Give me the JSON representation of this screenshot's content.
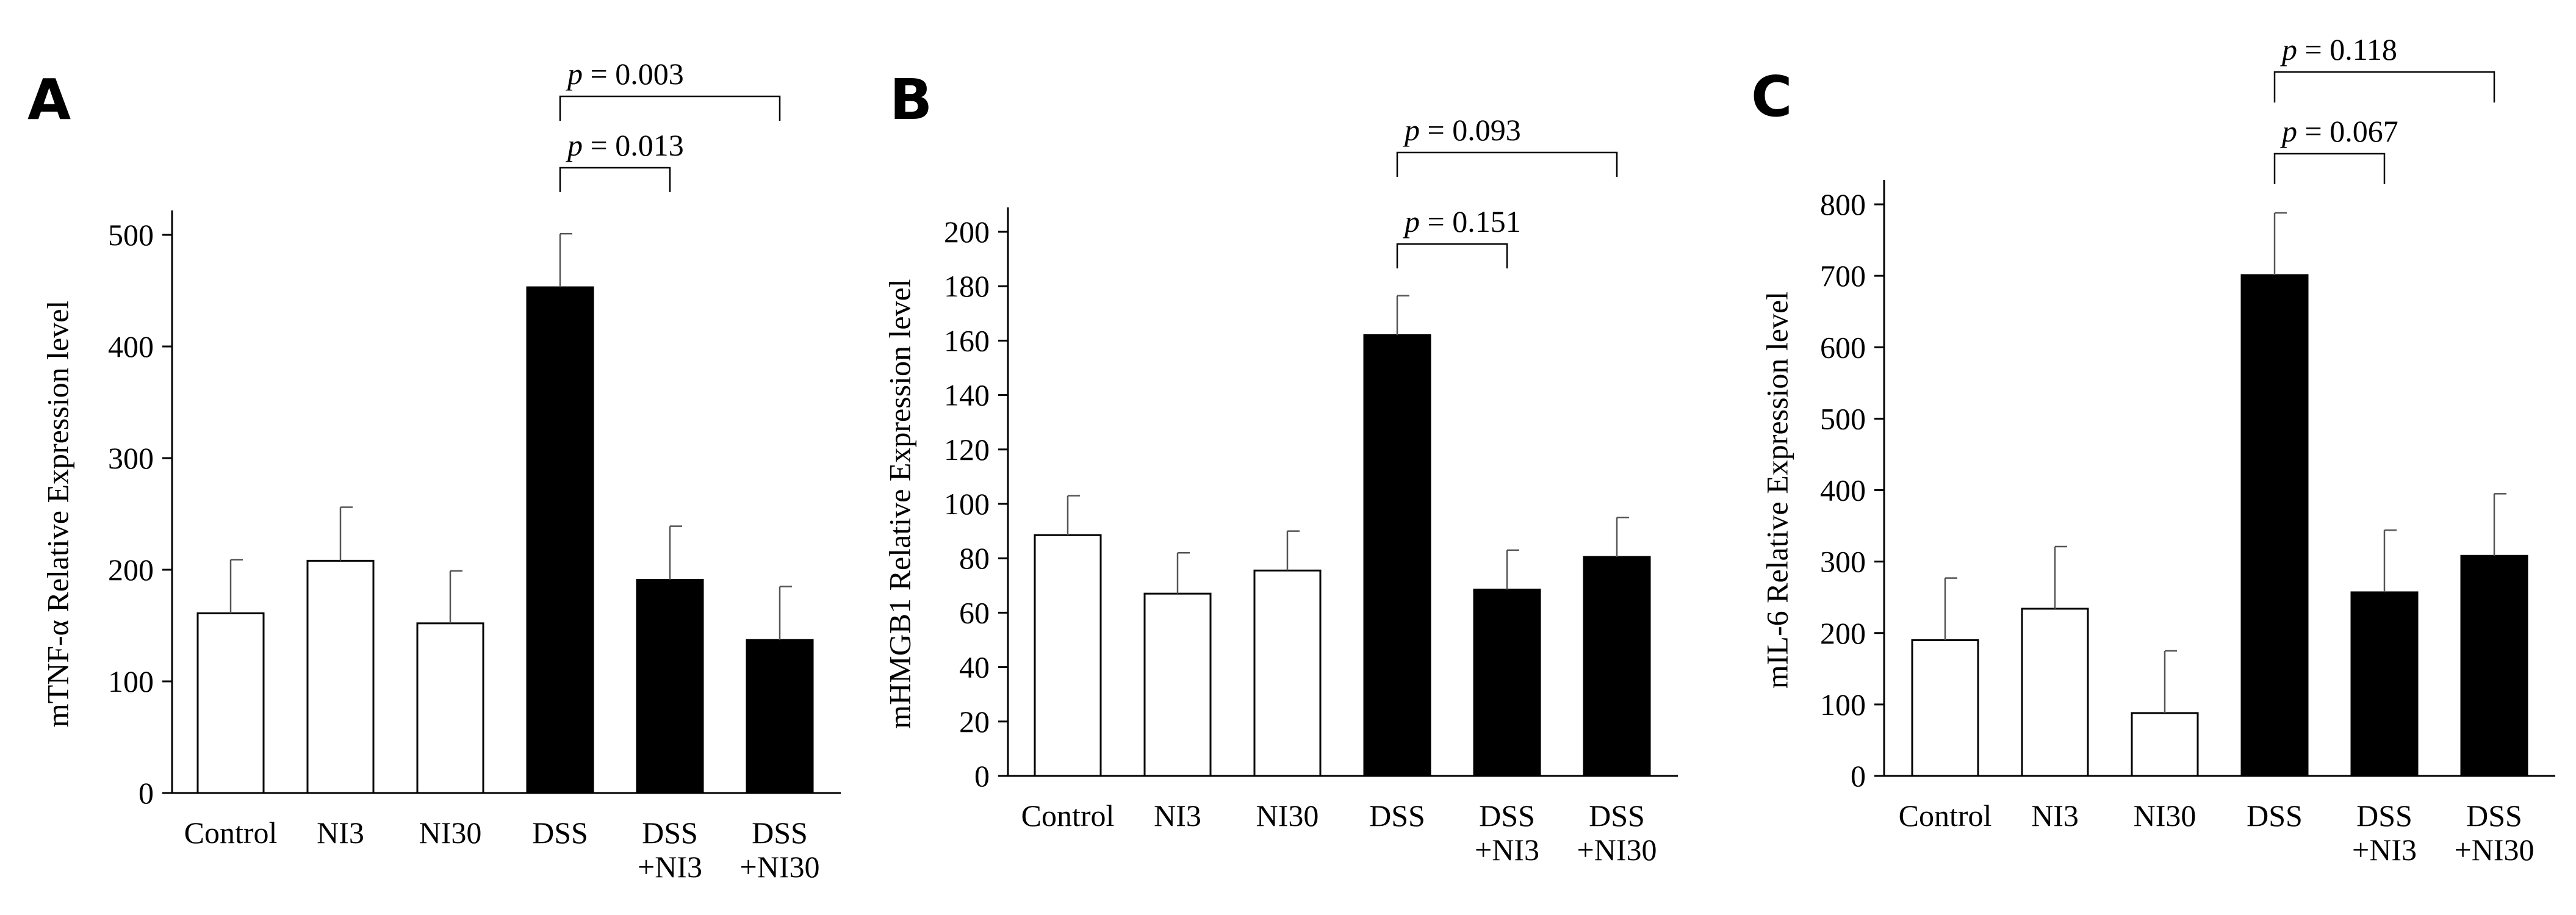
{
  "chart_data": [
    {
      "panel": "A",
      "type": "bar",
      "ylabel": "mTNF-α Relative Expression level",
      "ylim": [
        0,
        500
      ],
      "yticks": [
        0,
        100,
        200,
        300,
        400,
        500
      ],
      "categories": [
        [
          "Control"
        ],
        [
          "NI3"
        ],
        [
          "NI30"
        ],
        [
          "DSS"
        ],
        [
          "DSS",
          "+NI3"
        ],
        [
          "DSS",
          "+NI30"
        ]
      ],
      "values": [
        161,
        208,
        152,
        453,
        191,
        137
      ],
      "errors": [
        48,
        48,
        47,
        48,
        48,
        48
      ],
      "fills": [
        "#ffffff",
        "#ffffff",
        "#ffffff",
        "#000000",
        "#000000",
        "#000000"
      ],
      "comparisons": [
        {
          "from": 3,
          "to": 4,
          "label": "p = 0.013",
          "level": 0
        },
        {
          "from": 3,
          "to": 5,
          "label": "p = 0.003",
          "level": 1
        }
      ]
    },
    {
      "panel": "B",
      "type": "bar",
      "ylabel": "mHMGB1 Relative Expression level",
      "ylim": [
        0,
        200
      ],
      "yticks": [
        0,
        20,
        40,
        60,
        80,
        100,
        120,
        140,
        160,
        180,
        200
      ],
      "categories": [
        [
          "Control"
        ],
        [
          "NI3"
        ],
        [
          "NI30"
        ],
        [
          "DSS"
        ],
        [
          "DSS",
          "+NI3"
        ],
        [
          "DSS",
          "+NI30"
        ]
      ],
      "values": [
        88.5,
        67,
        75.5,
        162,
        68.5,
        80.5
      ],
      "errors": [
        14.5,
        15,
        14.5,
        14.5,
        14.5,
        14.5
      ],
      "fills": [
        "#ffffff",
        "#ffffff",
        "#ffffff",
        "#000000",
        "#000000",
        "#000000"
      ],
      "comparisons": [
        {
          "from": 3,
          "to": 4,
          "label": "p = 0.151",
          "level": 0
        },
        {
          "from": 3,
          "to": 5,
          "label": "p = 0.093",
          "level": 1
        }
      ]
    },
    {
      "panel": "C",
      "type": "bar",
      "ylabel": "mIL-6 Relative Expression level",
      "ylim": [
        0,
        800
      ],
      "yticks": [
        0,
        100,
        200,
        300,
        400,
        500,
        600,
        700,
        800
      ],
      "categories": [
        [
          "Control"
        ],
        [
          "NI3"
        ],
        [
          "NI30"
        ],
        [
          "DSS"
        ],
        [
          "DSS",
          "+NI3"
        ],
        [
          "DSS",
          "+NI30"
        ]
      ],
      "values": [
        190,
        234,
        88,
        701,
        257,
        308
      ],
      "errors": [
        87,
        87,
        87,
        87,
        87,
        87
      ],
      "fills": [
        "#ffffff",
        "#ffffff",
        "#ffffff",
        "#000000",
        "#000000",
        "#000000"
      ],
      "comparisons": [
        {
          "from": 3,
          "to": 4,
          "label": "p = 0.067",
          "level": 0
        },
        {
          "from": 3,
          "to": 5,
          "label": "p = 0.118",
          "level": 1
        }
      ]
    }
  ]
}
